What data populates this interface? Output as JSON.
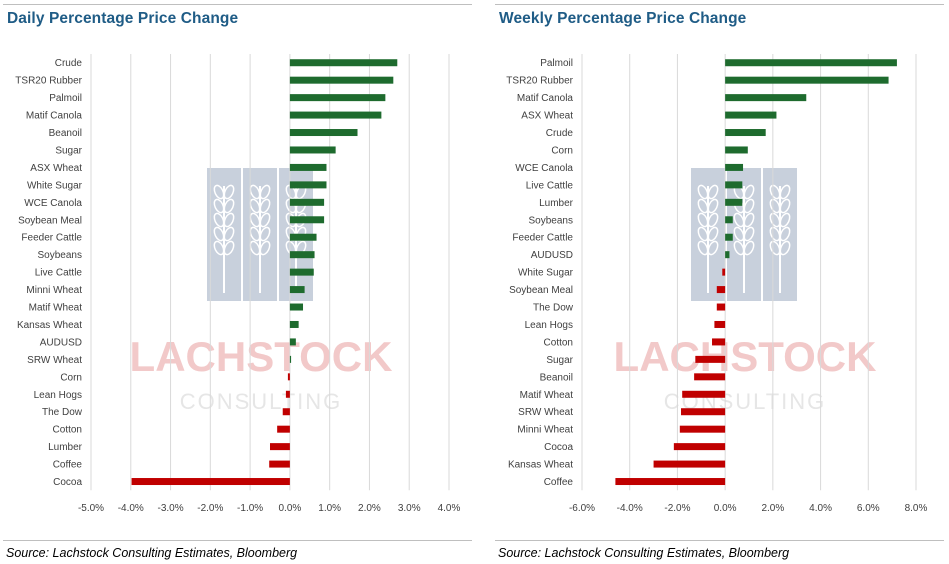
{
  "colors": {
    "positive": "#1e6b2e",
    "negative": "#c00000",
    "title": "#1f5c86",
    "grid": "#d9d9d9",
    "watermark_block": "#c8d0dc",
    "watermark_text": "#f2c9c9"
  },
  "watermark": {
    "name": "LACHSTOCK",
    "sub": "CONSULTING",
    "icon": "wheat-logo-icon"
  },
  "charts": [
    {
      "title": "Daily Percentage Price Change",
      "source": "Source: Lachstock Consulting Estimates, Bloomberg"
    },
    {
      "title": "Weekly Percentage Price Change",
      "source": "Source: Lachstock Consulting Estimates, Bloomberg"
    }
  ],
  "chart_data": [
    {
      "type": "bar",
      "orientation": "horizontal",
      "title": "Daily Percentage Price Change",
      "xlim": [
        -5.0,
        4.0
      ],
      "ticks": [
        "-5.0%",
        "-4.0%",
        "-3.0%",
        "-2.0%",
        "-1.0%",
        "0.0%",
        "1.0%",
        "2.0%",
        "3.0%",
        "4.0%"
      ],
      "tick_values": [
        -5,
        -4,
        -3,
        -2,
        -1,
        0,
        1,
        2,
        3,
        4
      ],
      "grid": true,
      "categories": [
        "Crude",
        "TSR20 Rubber",
        "Palmoil",
        "Matif Canola",
        "Beanoil",
        "Sugar",
        "ASX Wheat",
        "White Sugar",
        "WCE Canola",
        "Soybean Meal",
        "Feeder Cattle",
        "Soybeans",
        "Live Cattle",
        "Minni Wheat",
        "Matif Wheat",
        "Kansas Wheat",
        "AUDUSD",
        "SRW Wheat",
        "Corn",
        "Lean Hogs",
        "The Dow",
        "Cotton",
        "Lumber",
        "Coffee",
        "Cocoa"
      ],
      "values": [
        2.7,
        2.6,
        2.4,
        2.3,
        1.7,
        1.15,
        0.92,
        0.92,
        0.86,
        0.86,
        0.67,
        0.62,
        0.6,
        0.37,
        0.33,
        0.22,
        0.15,
        0.03,
        -0.05,
        -0.1,
        -0.18,
        -0.32,
        -0.5,
        -0.52,
        -3.98
      ]
    },
    {
      "type": "bar",
      "orientation": "horizontal",
      "title": "Weekly Percentage Price Change",
      "xlim": [
        -6.0,
        8.0
      ],
      "ticks": [
        "-6.0%",
        "-4.0%",
        "-2.0%",
        "0.0%",
        "2.0%",
        "4.0%",
        "6.0%",
        "8.0%"
      ],
      "tick_values": [
        -6,
        -4,
        -2,
        0,
        2,
        4,
        6,
        8
      ],
      "grid": true,
      "categories": [
        "Palmoil",
        "TSR20 Rubber",
        "Matif Canola",
        "ASX Wheat",
        "Crude",
        "Corn",
        "WCE Canola",
        "Live Cattle",
        "Lumber",
        "Soybeans",
        "Feeder Cattle",
        "AUDUSD",
        "White Sugar",
        "Soybean Meal",
        "The Dow",
        "Lean Hogs",
        "Cotton",
        "Sugar",
        "Beanoil",
        "Matif Wheat",
        "SRW Wheat",
        "Minni Wheat",
        "Cocoa",
        "Kansas Wheat",
        "Coffee"
      ],
      "values": [
        7.2,
        6.85,
        3.4,
        2.15,
        1.7,
        0.95,
        0.75,
        0.72,
        0.72,
        0.32,
        0.32,
        0.18,
        -0.12,
        -0.35,
        -0.35,
        -0.45,
        -0.55,
        -1.25,
        -1.3,
        -1.8,
        -1.85,
        -1.9,
        -2.15,
        -3.0,
        -4.6
      ]
    }
  ]
}
